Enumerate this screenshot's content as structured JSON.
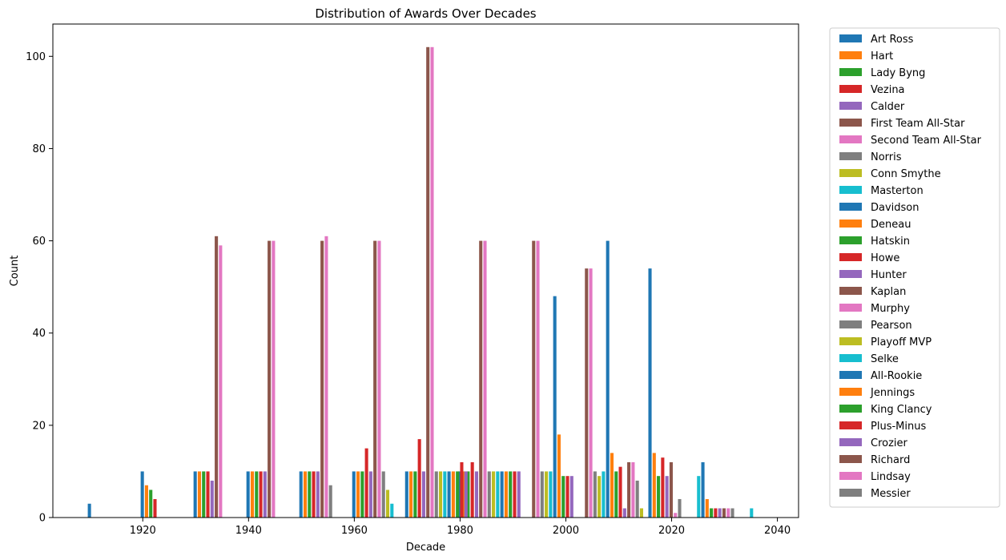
{
  "chart_data": {
    "type": "bar",
    "title": "Distribution of Awards Over Decades",
    "xlabel": "Decade",
    "ylabel": "Count",
    "xlim": [
      1903,
      2044
    ],
    "ylim": [
      0,
      107
    ],
    "xticks": [
      1920,
      1940,
      1960,
      1980,
      2000,
      2020,
      2040
    ],
    "yticks": [
      0,
      20,
      40,
      60,
      80,
      100
    ],
    "bar_width_years": 0.8,
    "legend_position": "outside-right",
    "series": [
      {
        "name": "Art Ross",
        "color": "#1f77b4",
        "points": [
          [
            1910,
            3
          ],
          [
            1920,
            10
          ],
          [
            1930,
            10
          ],
          [
            1940,
            10
          ],
          [
            1950,
            10
          ],
          [
            1960,
            10
          ],
          [
            1970,
            10
          ],
          [
            1980,
            10
          ]
        ]
      },
      {
        "name": "Hart",
        "color": "#ff7f0e",
        "points": [
          [
            1920,
            7
          ],
          [
            1930,
            10
          ],
          [
            1940,
            10
          ],
          [
            1950,
            10
          ],
          [
            1960,
            10
          ],
          [
            1970,
            10
          ],
          [
            1980,
            10
          ]
        ]
      },
      {
        "name": "Lady Byng",
        "color": "#2ca02c",
        "points": [
          [
            1920,
            6
          ],
          [
            1930,
            10
          ],
          [
            1940,
            10
          ],
          [
            1950,
            10
          ],
          [
            1960,
            10
          ],
          [
            1970,
            10
          ],
          [
            1980,
            10
          ]
        ]
      },
      {
        "name": "Vezina",
        "color": "#d62728",
        "points": [
          [
            1920,
            4
          ],
          [
            1930,
            10
          ],
          [
            1940,
            10
          ],
          [
            1950,
            10
          ],
          [
            1960,
            15
          ],
          [
            1970,
            17
          ],
          [
            1980,
            12
          ]
        ]
      },
      {
        "name": "Calder",
        "color": "#9467bd",
        "points": [
          [
            1930,
            8
          ],
          [
            1940,
            10
          ],
          [
            1950,
            10
          ],
          [
            1960,
            10
          ],
          [
            1970,
            10
          ],
          [
            1980,
            10
          ]
        ]
      },
      {
        "name": "First Team All-Star",
        "color": "#8c564b",
        "points": [
          [
            1930,
            61
          ],
          [
            1940,
            60
          ],
          [
            1950,
            60
          ],
          [
            1960,
            60
          ],
          [
            1970,
            102
          ],
          [
            1980,
            60
          ],
          [
            1990,
            60
          ],
          [
            2000,
            54
          ]
        ]
      },
      {
        "name": "Second Team All-Star",
        "color": "#e377c2",
        "points": [
          [
            1930,
            59
          ],
          [
            1940,
            60
          ],
          [
            1950,
            61
          ],
          [
            1960,
            60
          ],
          [
            1970,
            102
          ],
          [
            1980,
            60
          ],
          [
            1990,
            60
          ],
          [
            2000,
            54
          ]
        ]
      },
      {
        "name": "Norris",
        "color": "#7f7f7f",
        "points": [
          [
            1950,
            7
          ],
          [
            1960,
            10
          ],
          [
            1970,
            10
          ],
          [
            1980,
            10
          ],
          [
            1990,
            10
          ],
          [
            2000,
            10
          ]
        ]
      },
      {
        "name": "Conn Smythe",
        "color": "#bcbd22",
        "points": [
          [
            1960,
            6
          ],
          [
            1970,
            10
          ],
          [
            1980,
            10
          ],
          [
            1990,
            10
          ],
          [
            2000,
            9
          ]
        ]
      },
      {
        "name": "Masterton",
        "color": "#17becf",
        "points": [
          [
            1960,
            3
          ],
          [
            1970,
            10
          ],
          [
            1980,
            10
          ],
          [
            1990,
            10
          ],
          [
            2000,
            10
          ]
        ]
      },
      {
        "name": "Davidson",
        "color": "#1f77b4",
        "points": [
          [
            1970,
            10
          ],
          [
            1980,
            10
          ],
          [
            1990,
            48
          ],
          [
            2000,
            60
          ]
        ]
      },
      {
        "name": "Deneau",
        "color": "#ff7f0e",
        "points": [
          [
            1970,
            10
          ],
          [
            1980,
            10
          ],
          [
            1990,
            18
          ],
          [
            2000,
            14
          ]
        ]
      },
      {
        "name": "Hatskin",
        "color": "#2ca02c",
        "points": [
          [
            1970,
            10
          ],
          [
            1980,
            10
          ],
          [
            1990,
            9
          ],
          [
            2000,
            10
          ]
        ]
      },
      {
        "name": "Howe",
        "color": "#d62728",
        "points": [
          [
            1970,
            12
          ],
          [
            1980,
            10
          ],
          [
            1990,
            9
          ],
          [
            2000,
            11
          ]
        ]
      },
      {
        "name": "Hunter",
        "color": "#9467bd",
        "points": [
          [
            1970,
            10
          ],
          [
            1980,
            10
          ],
          [
            1990,
            9
          ],
          [
            2000,
            2
          ]
        ]
      },
      {
        "name": "Kaplan",
        "color": "#8c564b",
        "points": [
          [
            2000,
            12
          ]
        ]
      },
      {
        "name": "Murphy",
        "color": "#e377c2",
        "points": [
          [
            2000,
            12
          ]
        ]
      },
      {
        "name": "Pearson",
        "color": "#7f7f7f",
        "points": [
          [
            2000,
            8
          ]
        ]
      },
      {
        "name": "Playoff MVP",
        "color": "#bcbd22",
        "points": [
          [
            2000,
            2
          ]
        ]
      },
      {
        "name": "Selke",
        "color": "#17becf",
        "points": [
          [
            2010,
            9
          ],
          [
            2020,
            2
          ]
        ]
      },
      {
        "name": "All-Rookie",
        "color": "#1f77b4",
        "points": [
          [
            2000,
            54
          ],
          [
            2010,
            12
          ]
        ]
      },
      {
        "name": "Jennings",
        "color": "#ff7f0e",
        "points": [
          [
            2000,
            14
          ],
          [
            2010,
            4
          ]
        ]
      },
      {
        "name": "King Clancy",
        "color": "#2ca02c",
        "points": [
          [
            2000,
            9
          ],
          [
            2010,
            2
          ]
        ]
      },
      {
        "name": "Plus-Minus",
        "color": "#d62728",
        "points": [
          [
            2000,
            13
          ],
          [
            2010,
            2
          ]
        ]
      },
      {
        "name": "Crozier",
        "color": "#9467bd",
        "points": [
          [
            2000,
            9
          ],
          [
            2010,
            2
          ]
        ]
      },
      {
        "name": "Richard",
        "color": "#8c564b",
        "points": [
          [
            2000,
            12
          ],
          [
            2010,
            2
          ]
        ]
      },
      {
        "name": "Lindsay",
        "color": "#e377c2",
        "points": [
          [
            2000,
            1
          ],
          [
            2010,
            2
          ]
        ]
      },
      {
        "name": "Messier",
        "color": "#7f7f7f",
        "points": [
          [
            2000,
            4
          ],
          [
            2010,
            2
          ]
        ]
      }
    ]
  }
}
